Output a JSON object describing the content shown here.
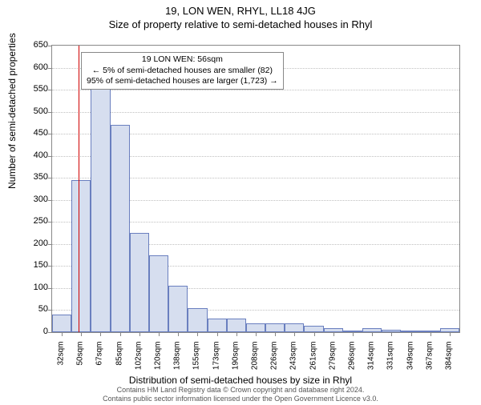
{
  "header": {
    "address": "19, LON WEN, RHYL, LL18 4JG",
    "subtitle": "Size of property relative to semi-detached houses in Rhyl"
  },
  "chart": {
    "type": "histogram",
    "ylabel": "Number of semi-detached properties",
    "xlabel": "Distribution of semi-detached houses by size in Rhyl",
    "ylim": [
      0,
      650
    ],
    "ytick_step": 50,
    "x_categories": [
      "32sqm",
      "50sqm",
      "67sqm",
      "85sqm",
      "102sqm",
      "120sqm",
      "138sqm",
      "155sqm",
      "173sqm",
      "190sqm",
      "208sqm",
      "226sqm",
      "243sqm",
      "261sqm",
      "279sqm",
      "296sqm",
      "314sqm",
      "331sqm",
      "349sqm",
      "367sqm",
      "384sqm"
    ],
    "values": [
      40,
      345,
      560,
      470,
      225,
      175,
      105,
      55,
      30,
      30,
      20,
      20,
      20,
      15,
      10,
      0,
      10,
      5,
      0,
      0,
      10
    ],
    "bar_fill": "#d6deef",
    "bar_stroke": "#6a7fbf",
    "grid_color": "#c0c0c0",
    "background_color": "#ffffff",
    "reference_line": {
      "position_index": 1.35,
      "color": "#d00000"
    },
    "annotation": {
      "line1": "19 LON WEN: 56sqm",
      "line2": "← 5% of semi-detached houses are smaller (82)",
      "line3": "95% of semi-detached houses are larger (1,723) →"
    }
  },
  "footer": {
    "line1": "Contains HM Land Registry data © Crown copyright and database right 2024.",
    "line2": "Contains public sector information licensed under the Open Government Licence v3.0."
  }
}
